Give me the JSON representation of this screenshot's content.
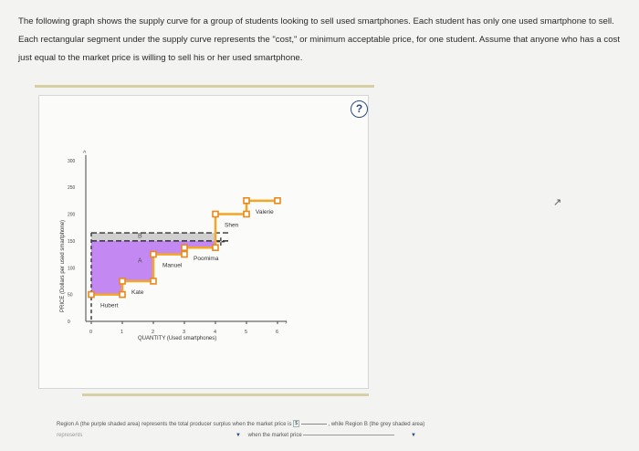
{
  "intro": {
    "paragraph": "The following graph shows the supply curve for a group of students looking to sell used smartphones. Each student has only one used smartphone to sell. Each rectangular segment under the supply curve represents the \"cost,\" or minimum acceptable price, for one student. Assume that anyone who has a cost just equal to the market price is willing to sell his or her used smartphone."
  },
  "help_button": {
    "label": "?"
  },
  "chart_data": {
    "type": "step",
    "xlabel": "QUANTITY (Used smartphones)",
    "ylabel": "PRICE (Dollars per used smartphone)",
    "xlim": [
      0,
      6
    ],
    "ylim": [
      0,
      300
    ],
    "x_ticks": [
      "0",
      "1",
      "2",
      "3",
      "4",
      "5",
      "6"
    ],
    "y_ticks": [
      "0",
      "50",
      "100",
      "150",
      "200",
      "250",
      "300"
    ],
    "sellers": [
      {
        "name": "Hubert",
        "cost": 50,
        "q_start": 0,
        "q_end": 1
      },
      {
        "name": "Kate",
        "cost": 75,
        "q_start": 1,
        "q_end": 2
      },
      {
        "name": "Manuel",
        "cost": 125,
        "q_start": 2,
        "q_end": 3
      },
      {
        "name": "Poomima",
        "cost": 137.5,
        "q_start": 3,
        "q_end": 4
      },
      {
        "name": "Shen",
        "cost": 200,
        "q_start": 4,
        "q_end": 5
      },
      {
        "name": "Valerie",
        "cost": 225,
        "q_start": 5,
        "q_end": 6
      }
    ],
    "market_price": 150,
    "region_a": {
      "label": "A",
      "color": "#c082f0"
    },
    "region_b": {
      "label": "B",
      "color": "#c8c8c8"
    },
    "curve_color": "#f5a623",
    "handle_color": "#e8891d"
  },
  "question": {
    "part1": "Region A (the purple shaded area) represents the total producer surplus when the market price is",
    "price_value": "$",
    "part2": ", while Region B (the grey shaded area)",
    "part3": "represents",
    "part4": "when the market price"
  }
}
